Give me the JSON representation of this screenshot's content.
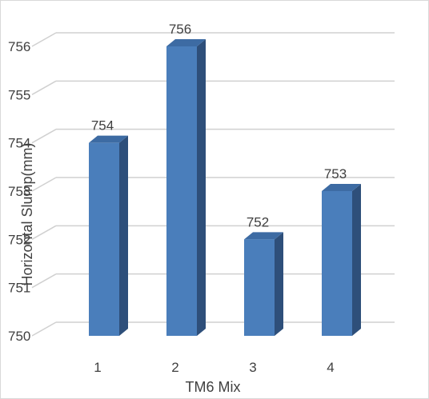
{
  "chart_data": {
    "type": "bar",
    "three_d": true,
    "title": "",
    "xlabel": "TM6 Mix",
    "ylabel": "Horizontal Slump(mm)",
    "categories": [
      "1",
      "2",
      "3",
      "4"
    ],
    "values": [
      754,
      756,
      752,
      753
    ],
    "data_labels": [
      "754",
      "756",
      "752",
      "753"
    ],
    "y_ticks": [
      "750",
      "751",
      "752",
      "753",
      "754",
      "755",
      "756"
    ],
    "ylim": [
      750,
      756
    ],
    "grid": true,
    "legend": "none",
    "colors": {
      "bar_front": "#4a7ebb",
      "bar_side": "#2e4f7a",
      "bar_top": "#3d6ba3",
      "grid": "#d0d0d0"
    }
  }
}
